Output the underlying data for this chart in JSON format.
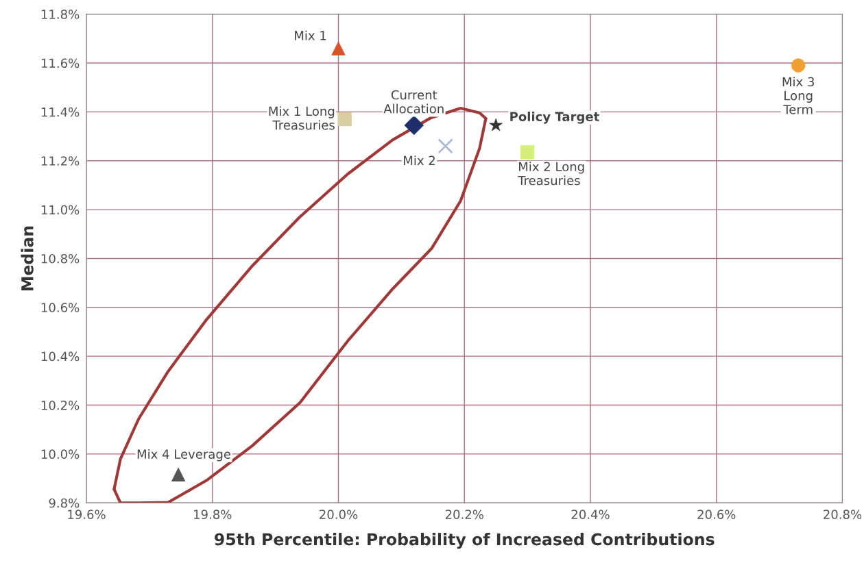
{
  "chart_data": {
    "type": "scatter",
    "xlabel": "95th Percentile: Probability of Increased Contributions",
    "ylabel": "Median",
    "xlim": [
      19.6,
      20.8
    ],
    "ylim": [
      9.8,
      11.8
    ],
    "xticks": [
      {
        "value": 19.6,
        "label": "19.6%"
      },
      {
        "value": 19.8,
        "label": "19.8%"
      },
      {
        "value": 20.0,
        "label": "20.0%"
      },
      {
        "value": 20.2,
        "label": "20.2%"
      },
      {
        "value": 20.4,
        "label": "20.4%"
      },
      {
        "value": 20.6,
        "label": "20.6%"
      },
      {
        "value": 20.8,
        "label": "20.8%"
      }
    ],
    "yticks": [
      {
        "value": 9.8,
        "label": "9.8%"
      },
      {
        "value": 10.0,
        "label": "10.0%"
      },
      {
        "value": 10.2,
        "label": "10.2%"
      },
      {
        "value": 10.4,
        "label": "10.4%"
      },
      {
        "value": 10.6,
        "label": "10.6%"
      },
      {
        "value": 10.8,
        "label": "10.8%"
      },
      {
        "value": 11.0,
        "label": "11.0%"
      },
      {
        "value": 11.2,
        "label": "11.2%"
      },
      {
        "value": 11.4,
        "label": "11.4%"
      },
      {
        "value": 11.6,
        "label": "11.6%"
      },
      {
        "value": 11.8,
        "label": "11.8%"
      }
    ],
    "grid": true,
    "legend": false,
    "series": [
      {
        "name": "Mix 1",
        "color": "#d9542b",
        "marker": "triangle",
        "x": [
          20.0
        ],
        "values": [
          11.66
        ]
      },
      {
        "name": "Mix 1 Long\nTreasuries",
        "color": "#d8cfa0",
        "marker": "square",
        "x": [
          20.01
        ],
        "values": [
          11.37
        ]
      },
      {
        "name": "Current\nAllocation",
        "color": "#1f2f6b",
        "marker": "diamond",
        "x": [
          20.12
        ],
        "values": [
          11.345
        ]
      },
      {
        "name": "Mix 2",
        "color": "#a8b8d8",
        "marker": "cross",
        "x": [
          20.17
        ],
        "values": [
          11.26
        ]
      },
      {
        "name": "Policy Target",
        "color": "#333333",
        "marker": "star",
        "x": [
          20.25
        ],
        "values": [
          11.345
        ]
      },
      {
        "name": "Mix 2 Long\nTreasuries",
        "color": "#d4f07a",
        "marker": "square",
        "x": [
          20.3
        ],
        "values": [
          11.235
        ]
      },
      {
        "name": "Mix 3\nLong\nTerm",
        "color": "#f0a030",
        "marker": "circle",
        "x": [
          20.73
        ],
        "values": [
          11.59
        ]
      },
      {
        "name": "Mix 4 Leverage",
        "color": "#555555",
        "marker": "triangle",
        "x": [
          19.746
        ],
        "values": [
          9.916
        ]
      },
      {
        "type": "line",
        "color": "#a03838",
        "marker": "none",
        "x": [
          19.644,
          19.654,
          19.683,
          19.73,
          19.791,
          19.862,
          19.938,
          20.015,
          20.086,
          20.147,
          20.194,
          20.224,
          20.234
        ],
        "values": [
          9.856,
          9.979,
          10.144,
          10.339,
          10.551,
          10.766,
          10.968,
          11.146,
          11.285,
          11.376,
          11.415,
          11.396,
          11.373
        ]
      },
      {
        "type": "line",
        "color": "#a03838",
        "marker": "none",
        "x": [
          19.644,
          19.654,
          19.684,
          19.73,
          19.792,
          19.863,
          19.939,
          20.015,
          20.087,
          20.148,
          20.194,
          20.224,
          20.234
        ],
        "values": [
          9.856,
          9.8,
          9.8,
          9.802,
          9.894,
          10.033,
          10.21,
          10.463,
          10.678,
          10.841,
          11.036,
          11.25,
          11.373
        ]
      }
    ]
  }
}
